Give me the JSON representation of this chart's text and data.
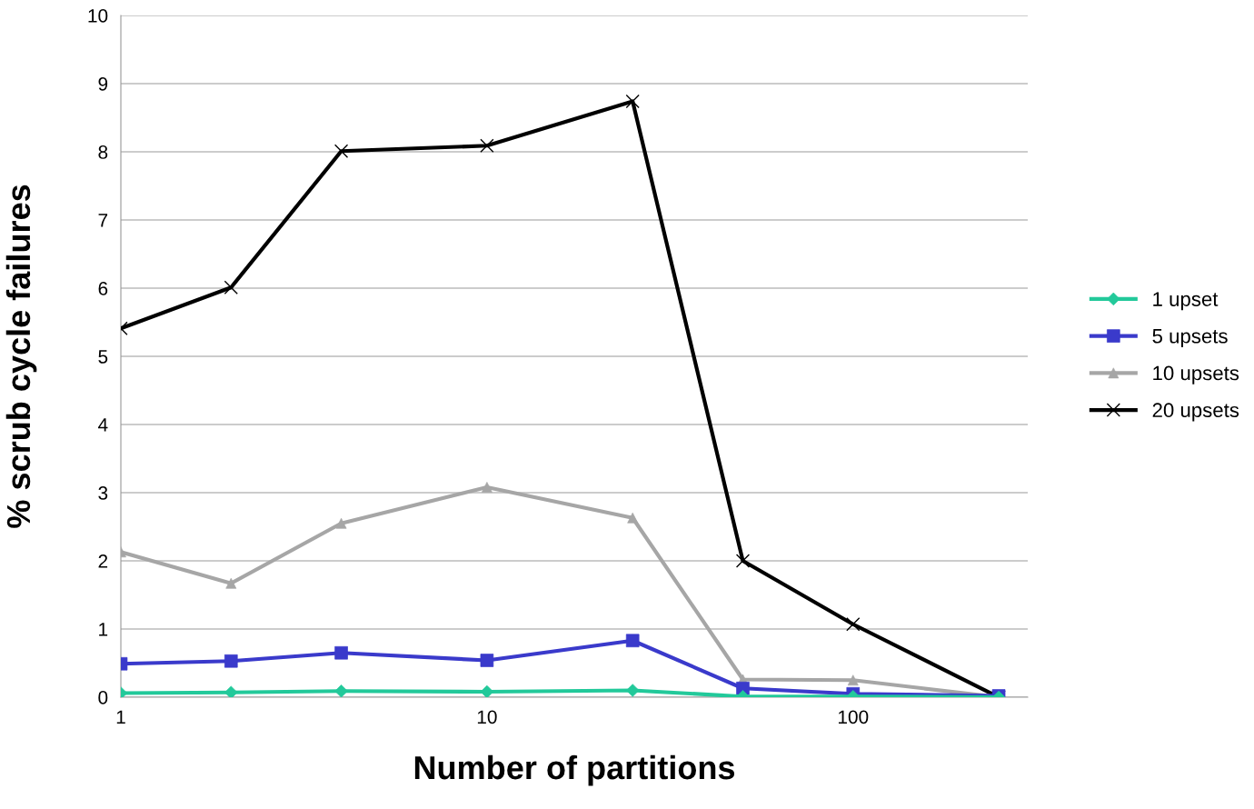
{
  "chart_data": {
    "type": "line",
    "xlabel": "Number of partitions",
    "ylabel": "% scrub cycle failures",
    "x": [
      1,
      2,
      4,
      10,
      25,
      50,
      100,
      250
    ],
    "log": "x",
    "xlim": [
      1,
      300
    ],
    "xticks": [
      1,
      10,
      100
    ],
    "ylim": [
      0,
      10
    ],
    "yticks": [
      0,
      1,
      2,
      3,
      4,
      5,
      6,
      7,
      8,
      9,
      10
    ],
    "grid": "y",
    "legend": "right",
    "line_style": "solid",
    "series": [
      {
        "name": "1 upset",
        "color": "#22c99a",
        "marker": "diamond",
        "values": [
          0.06,
          0.07,
          0.09,
          0.08,
          0.1,
          0.01,
          0.01,
          0.0
        ]
      },
      {
        "name": "5 upsets",
        "color": "#3a3acb",
        "marker": "square",
        "values": [
          0.49,
          0.53,
          0.65,
          0.54,
          0.83,
          0.13,
          0.05,
          0.02
        ]
      },
      {
        "name": "10 upsets",
        "color": "#a6a6a6",
        "marker": "triangle",
        "values": [
          2.13,
          1.67,
          2.55,
          3.08,
          2.63,
          0.26,
          0.25,
          0.0
        ]
      },
      {
        "name": "20 upsets",
        "color": "#000000",
        "marker": "cross",
        "values": [
          5.41,
          6.01,
          8.01,
          8.09,
          8.74,
          2.0,
          1.07,
          0.0
        ]
      }
    ]
  }
}
